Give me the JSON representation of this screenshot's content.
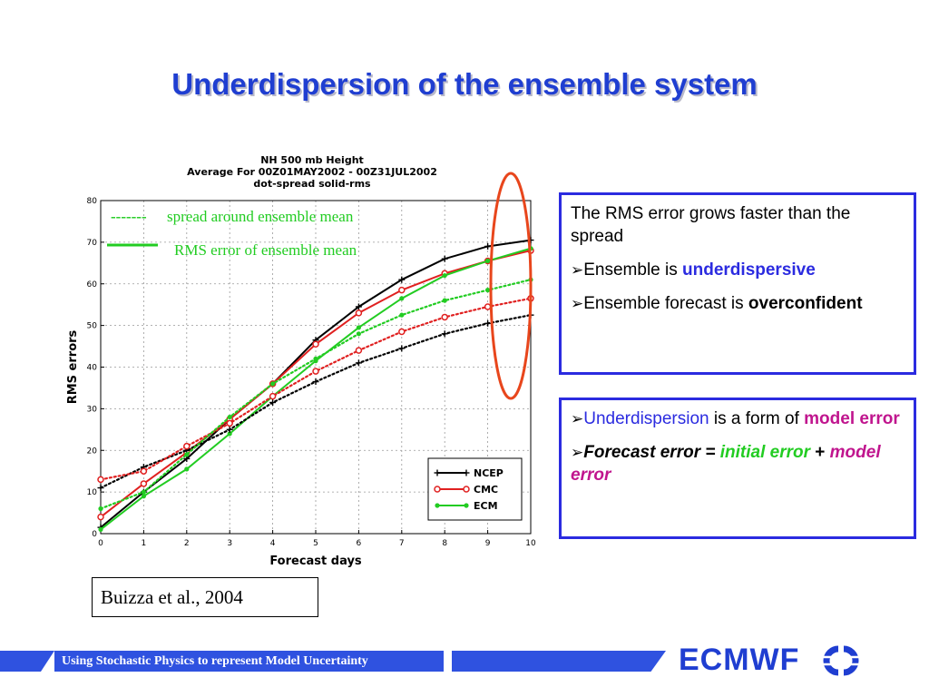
{
  "slide": {
    "title": "Underdispersion of the ensemble system",
    "citation": "Buizza et al., 2004",
    "footer": "Using Stochastic Physics to represent Model Uncertainty",
    "logo_text": "ECMWF"
  },
  "box1": {
    "line1": "The RMS error grows faster than the spread",
    "b1_prefix": "Ensemble is ",
    "b1_emph": "underdispersive",
    "b2_prefix": "Ensemble forecast is ",
    "b2_emph": "overconfident"
  },
  "box2": {
    "b1_emph": "Underdispersion",
    "b1_mid": " is a form of ",
    "b1_tail": "model error",
    "b2_label": "Forecast error = ",
    "b2_term1": "initial error",
    "b2_plus": "+ ",
    "b2_term2": "model error"
  },
  "chart_data": {
    "type": "line",
    "title": [
      "NH 500 mb Height",
      "Average For 00Z01MAY2002 - 00Z31JUL2002",
      "dot-spread solid-rms"
    ],
    "xlabel": "Forecast days",
    "ylabel": "RMS errors",
    "xlim": [
      0,
      10
    ],
    "ylim": [
      0,
      80
    ],
    "xticks": [
      0,
      1,
      2,
      3,
      4,
      5,
      6,
      7,
      8,
      9,
      10
    ],
    "yticks": [
      0,
      10,
      20,
      30,
      40,
      50,
      60,
      70,
      80
    ],
    "grid": true,
    "legend_position": "bottom-right",
    "annotations": {
      "dash": "-------",
      "spread": "spread around ensemble mean",
      "rms": "RMS error of ensemble mean"
    },
    "series": [
      {
        "name": "NCEP",
        "kind": "rms",
        "color": "#000000",
        "marker": "plus",
        "x": [
          0,
          1,
          2,
          3,
          4,
          5,
          6,
          7,
          8,
          9,
          10
        ],
        "values": [
          1.5,
          10,
          18,
          27.5,
          36,
          46.5,
          54.5,
          61,
          66,
          69,
          70.5
        ]
      },
      {
        "name": "CMC",
        "kind": "rms",
        "color": "#e02020",
        "marker": "circle",
        "x": [
          0,
          1,
          2,
          3,
          4,
          5,
          6,
          7,
          8,
          9,
          10
        ],
        "values": [
          4,
          12,
          19.5,
          27.5,
          36,
          45.5,
          53,
          58.5,
          62.5,
          65.5,
          68
        ]
      },
      {
        "name": "ECM",
        "kind": "rms",
        "color": "#22cc22",
        "marker": "dot",
        "x": [
          0,
          1,
          2,
          3,
          4,
          5,
          6,
          7,
          8,
          9,
          10
        ],
        "values": [
          1,
          9,
          15.5,
          24,
          33,
          41.5,
          49.5,
          56.5,
          62,
          65.5,
          68.5
        ]
      },
      {
        "name": "NCEP",
        "kind": "spread",
        "color": "#000000",
        "marker": "plus",
        "x": [
          0,
          1,
          2,
          3,
          4,
          5,
          6,
          7,
          8,
          9,
          10
        ],
        "values": [
          11,
          16,
          20,
          25,
          31.5,
          36.5,
          41,
          44.5,
          48,
          50.5,
          52.5
        ]
      },
      {
        "name": "CMC",
        "kind": "spread",
        "color": "#e02020",
        "marker": "circle",
        "x": [
          0,
          1,
          2,
          3,
          4,
          5,
          6,
          7,
          8,
          9,
          10
        ],
        "values": [
          13,
          15,
          21,
          26.5,
          33,
          39,
          44,
          48.5,
          52,
          54.5,
          56.5
        ]
      },
      {
        "name": "ECM",
        "kind": "spread",
        "color": "#22cc22",
        "marker": "dot",
        "x": [
          0,
          1,
          2,
          3,
          4,
          5,
          6,
          7,
          8,
          9,
          10
        ],
        "values": [
          6,
          10,
          19,
          28,
          36,
          42,
          48,
          52.5,
          56,
          58.5,
          61
        ]
      }
    ],
    "legend": [
      "NCEP",
      "CMC",
      "ECM"
    ]
  }
}
